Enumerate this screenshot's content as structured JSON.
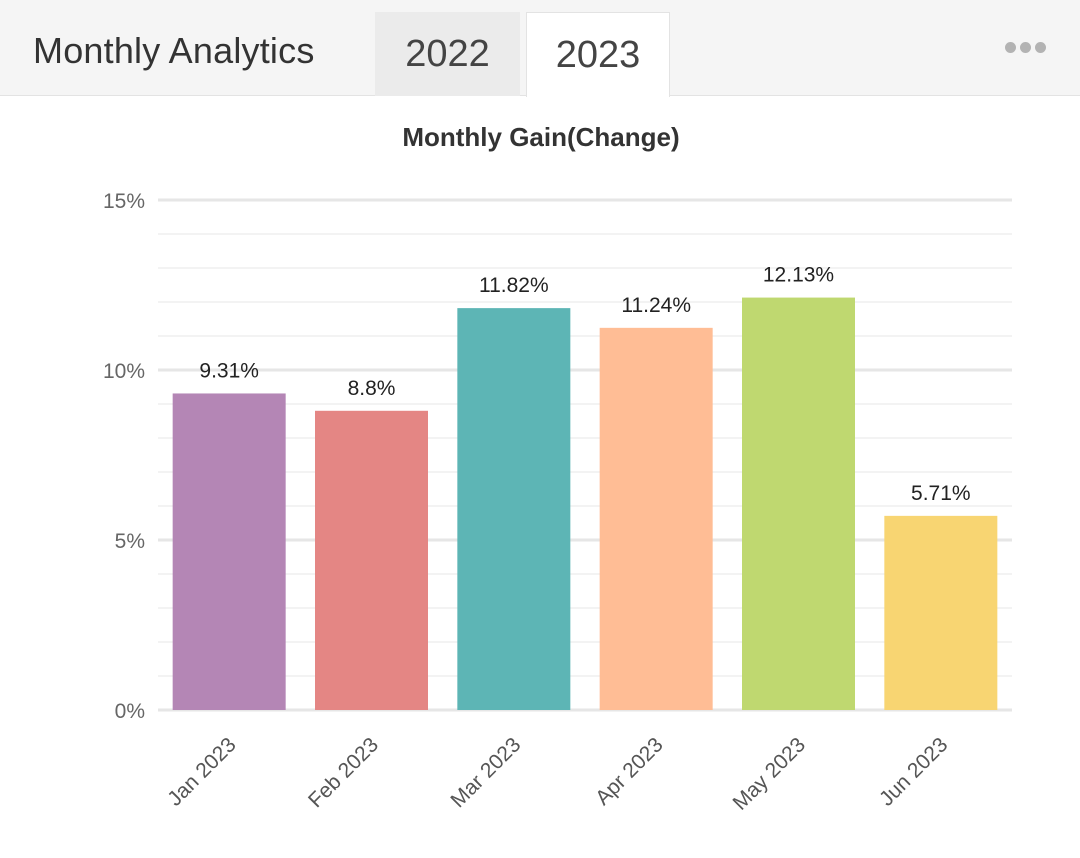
{
  "header": {
    "title": "Monthly Analytics",
    "tabs": [
      {
        "label": "2022",
        "active": false
      },
      {
        "label": "2023",
        "active": true
      }
    ],
    "more_icon": "more-horizontal-icon"
  },
  "chart_data": {
    "type": "bar",
    "title": "Monthly Gain(Change)",
    "xlabel": "",
    "ylabel": "",
    "categories": [
      "Jan 2023",
      "Feb 2023",
      "Mar 2023",
      "Apr 2023",
      "May 2023",
      "Jun 2023"
    ],
    "values": [
      9.31,
      8.8,
      11.82,
      11.24,
      12.13,
      5.71
    ],
    "value_labels": [
      "9.31%",
      "8.8%",
      "11.82%",
      "11.24%",
      "12.13%",
      "5.71%"
    ],
    "colors": [
      "#b486b5",
      "#e48684",
      "#5db5b5",
      "#ffbd95",
      "#bfd870",
      "#f8d572"
    ],
    "ylim": [
      0,
      15
    ],
    "yticks": [
      0,
      5,
      10,
      15
    ],
    "ytick_labels": [
      "0%",
      "5%",
      "10%",
      "15%"
    ],
    "grid": true,
    "legend": "none"
  }
}
